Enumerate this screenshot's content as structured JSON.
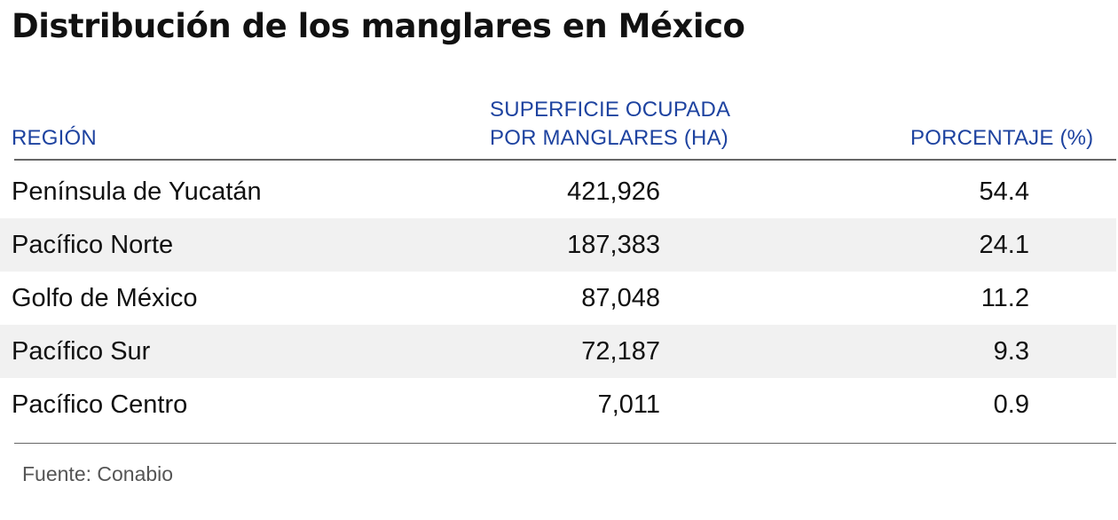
{
  "title": "Distribución de los manglares en México",
  "table": {
    "headers": {
      "region": "REGIÓN",
      "surface_line1": "SUPERFICIE OCUPADA",
      "surface_line2": "POR MANGLARES (HA)",
      "percent": "PORCENTAJE (%)"
    },
    "rows": [
      {
        "region": "Península de Yucatán",
        "surface": "421,926",
        "percent": "54.4"
      },
      {
        "region": "Pacífico Norte",
        "surface": "187,383",
        "percent": "24.1"
      },
      {
        "region": "Golfo de México",
        "surface": "87,048",
        "percent": "11.2"
      },
      {
        "region": "Pacífico Sur",
        "surface": "72,187",
        "percent": "9.3"
      },
      {
        "region": "Pacífico Centro",
        "surface": "7,011",
        "percent": "0.9"
      }
    ]
  },
  "source": "Fuente: Conabio",
  "colors": {
    "header_text": "#1e43a0",
    "row_stripe": "#f1f1f1",
    "rule": "#666666"
  }
}
